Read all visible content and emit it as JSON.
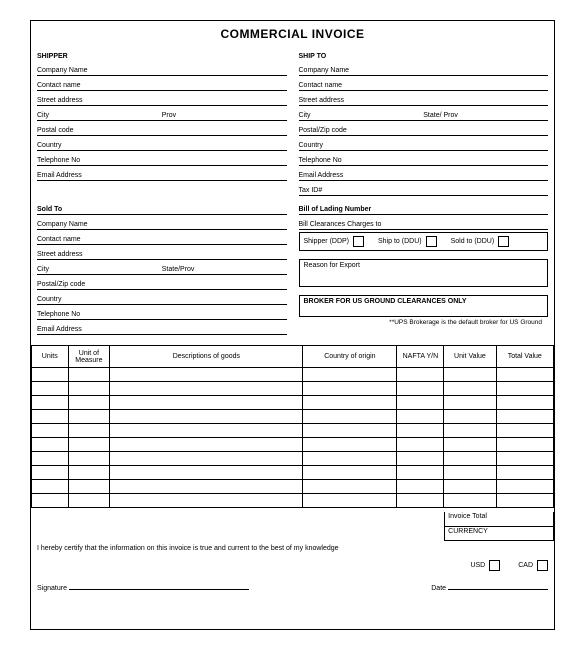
{
  "title": "COMMERCIAL INVOICE",
  "shipper": {
    "heading": "SHIPPER",
    "company": "Company Name",
    "contact": "Contact name",
    "street": "Street address",
    "city": "City",
    "prov": "Prov",
    "postal": "Postal code",
    "country": "Country",
    "telephone": "Telephone No",
    "email": "Email Address"
  },
  "shipto": {
    "heading": "SHIP TO",
    "company": "Company Name",
    "contact": "Contact name",
    "street": "Street address",
    "city": "City",
    "prov": "State/ Prov",
    "postal": "Postal/Zip code",
    "country": "Country",
    "telephone": "Telephone No",
    "email": "Email Address",
    "taxid": "Tax ID#"
  },
  "soldto": {
    "heading": "Sold To",
    "company": "Company Name",
    "contact": "Contact name",
    "street": "Street address",
    "city": "City",
    "prov": "State/Prov",
    "postal": "Postal/Zip code",
    "country": "Country",
    "telephone": "Telephone No",
    "email": "Email Address"
  },
  "bill": {
    "lading": "Bill of Lading Number",
    "charges": "Bill Clearances Charges to",
    "opt1": "Shipper (DDP)",
    "opt2": "Ship to (DDU)",
    "opt3": "Sold to (DDU)",
    "reason": "Reason for Export",
    "broker": "BROKER FOR US GROUND CLEARANCES ONLY",
    "note": "**UPS Brokerage is the default broker for US Ground"
  },
  "table": {
    "headers": {
      "units": "Units",
      "uom": "Unit of Measure",
      "desc": "Descriptions of goods",
      "coo": "Country of origin",
      "nafta": "NAFTA Y/N",
      "uval": "Unit Value",
      "tval": "Total Value"
    },
    "rowCount": 10
  },
  "totals": {
    "invoice_total": "Invoice Total",
    "currency": "CURRENCY",
    "usd": "USD",
    "cad": "CAD"
  },
  "footer": {
    "certify": "I hereby certify that the information on this invoice is true and current to the best of my knowledge",
    "signature": "Signature",
    "date": "Date"
  },
  "colors": {
    "border": "#000000",
    "bg": "#ffffff"
  }
}
